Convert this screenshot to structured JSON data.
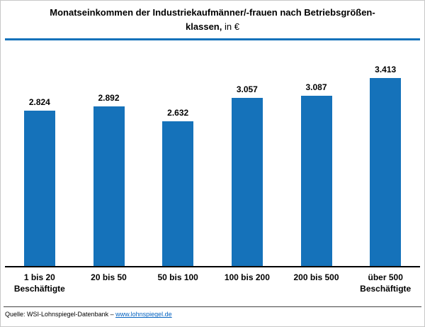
{
  "title": {
    "line1": "Monatseinkommen der Industriekaufmänner/-frauen nach Betriebsgrößen-",
    "line2_bold": "klassen,",
    "line2_regular": " in €"
  },
  "colors": {
    "accent": "#1572BA"
  },
  "chart_data": {
    "type": "bar",
    "title": "Monatseinkommen der Industriekaufmänner/-frauen nach Betriebsgrößenklassen, in €",
    "categories": [
      "1 bis 20\nBeschäftigte",
      "20 bis 50",
      "50 bis 100",
      "100 bis 200",
      "200 bis 500",
      "über 500\nBeschäftigte"
    ],
    "values": [
      2824,
      2892,
      2632,
      3057,
      3087,
      3413
    ],
    "value_labels": [
      "2.824",
      "2.892",
      "2.632",
      "3.057",
      "3.087",
      "3.413"
    ],
    "xlabel": "",
    "ylabel": "€",
    "ylim": [
      0,
      3500
    ],
    "grid": false,
    "legend": false,
    "bar_color": "#1572BA"
  },
  "footer": {
    "source_prefix": "Quelle: WSI-Lohnspiegel-Datenbank – ",
    "link_text": "www.lohnspiegel.de"
  }
}
